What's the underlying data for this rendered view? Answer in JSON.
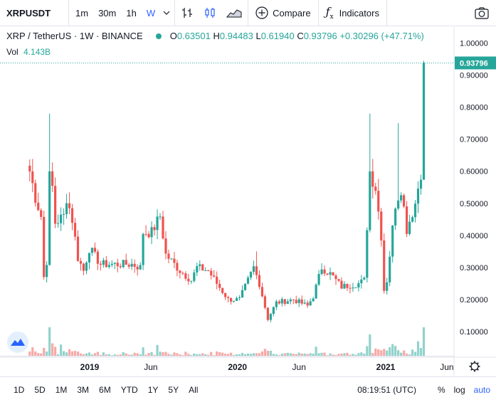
{
  "toolbar": {
    "symbol": "XRPUSDT",
    "timeframes": [
      "1m",
      "30m",
      "1h",
      "W"
    ],
    "active_timeframe": "W",
    "compare_label": "Compare",
    "indicators_label": "Indicators"
  },
  "legend": {
    "title": "XRP / TetherUS · 1W · BINANCE",
    "open_key": "O",
    "open": "0.63501",
    "high_key": "H",
    "high": "0.94483",
    "low_key": "L",
    "low": "0.61940",
    "close_key": "C",
    "close": "0.93796",
    "change": "+0.30296 (+47.71%)",
    "vol_label": "Vol",
    "vol_value": "4.143B"
  },
  "colors": {
    "up": "#26a69a",
    "down": "#ef5350",
    "vol_up": "#92d2cc",
    "vol_down": "#f7a9a7",
    "accent": "#2962ff"
  },
  "chart_data": {
    "type": "candlestick",
    "y_ticks": [
      "1.00000",
      "0.90000",
      "0.80000",
      "0.70000",
      "0.60000",
      "0.50000",
      "0.40000",
      "0.30000",
      "0.20000",
      "0.10000"
    ],
    "x_ticks": [
      "2019",
      "Jun",
      "2020",
      "Jun",
      "2021",
      "Jun"
    ],
    "ylim": [
      0,
      1.05
    ],
    "last_price": "0.93796",
    "keypoints": [
      {
        "t": "2018-08-06",
        "v": 0.6
      },
      {
        "t": "2018-08-20",
        "v": 0.52
      },
      {
        "t": "2018-09-03",
        "v": 0.46
      },
      {
        "t": "2018-09-10",
        "v": 0.27
      },
      {
        "t": "2018-09-17",
        "v": 0.32
      },
      {
        "t": "2018-09-24",
        "v": 0.58
      },
      {
        "t": "2018-10-01",
        "v": 0.55
      },
      {
        "t": "2018-10-08",
        "v": 0.44
      },
      {
        "t": "2018-10-29",
        "v": 0.46
      },
      {
        "t": "2018-11-05",
        "v": 0.52
      },
      {
        "t": "2018-11-19",
        "v": 0.45
      },
      {
        "t": "2018-12-03",
        "v": 0.33
      },
      {
        "t": "2018-12-17",
        "v": 0.29
      },
      {
        "t": "2018-12-31",
        "v": 0.36
      },
      {
        "t": "2019-01-28",
        "v": 0.31
      },
      {
        "t": "2019-03-11",
        "v": 0.31
      },
      {
        "t": "2019-04-15",
        "v": 0.31
      },
      {
        "t": "2019-05-06",
        "v": 0.3
      },
      {
        "t": "2019-05-13",
        "v": 0.41
      },
      {
        "t": "2019-06-03",
        "v": 0.41
      },
      {
        "t": "2019-06-24",
        "v": 0.46
      },
      {
        "t": "2019-07-08",
        "v": 0.34
      },
      {
        "t": "2019-08-12",
        "v": 0.29
      },
      {
        "t": "2019-09-09",
        "v": 0.26
      },
      {
        "t": "2019-09-23",
        "v": 0.3
      },
      {
        "t": "2019-10-21",
        "v": 0.29
      },
      {
        "t": "2019-11-11",
        "v": 0.25
      },
      {
        "t": "2019-12-09",
        "v": 0.2
      },
      {
        "t": "2020-01-06",
        "v": 0.2
      },
      {
        "t": "2020-02-10",
        "v": 0.3
      },
      {
        "t": "2020-02-24",
        "v": 0.25
      },
      {
        "t": "2020-03-16",
        "v": 0.14
      },
      {
        "t": "2020-04-06",
        "v": 0.19
      },
      {
        "t": "2020-05-18",
        "v": 0.2
      },
      {
        "t": "2020-06-22",
        "v": 0.18
      },
      {
        "t": "2020-07-06",
        "v": 0.21
      },
      {
        "t": "2020-07-27",
        "v": 0.3
      },
      {
        "t": "2020-08-17",
        "v": 0.28
      },
      {
        "t": "2020-09-14",
        "v": 0.24
      },
      {
        "t": "2020-10-26",
        "v": 0.25
      },
      {
        "t": "2020-11-09",
        "v": 0.26
      },
      {
        "t": "2020-11-23",
        "v": 0.6
      },
      {
        "t": "2020-12-07",
        "v": 0.55
      },
      {
        "t": "2020-12-21",
        "v": 0.4
      },
      {
        "t": "2020-12-28",
        "v": 0.23
      },
      {
        "t": "2021-01-04",
        "v": 0.26
      },
      {
        "t": "2021-01-25",
        "v": 0.5
      },
      {
        "t": "2021-02-08",
        "v": 0.55
      },
      {
        "t": "2021-02-22",
        "v": 0.42
      },
      {
        "t": "2021-03-15",
        "v": 0.5
      },
      {
        "t": "2021-03-29",
        "v": 0.6
      },
      {
        "t": "2021-04-05",
        "v": 0.94
      }
    ],
    "volume_note": ""
  },
  "bottombar": {
    "ranges": [
      "1D",
      "5D",
      "1M",
      "3M",
      "6M",
      "YTD",
      "1Y",
      "5Y",
      "All"
    ],
    "clock": "08:19:51 (UTC)",
    "percent": "%",
    "log": "log",
    "auto": "auto"
  }
}
